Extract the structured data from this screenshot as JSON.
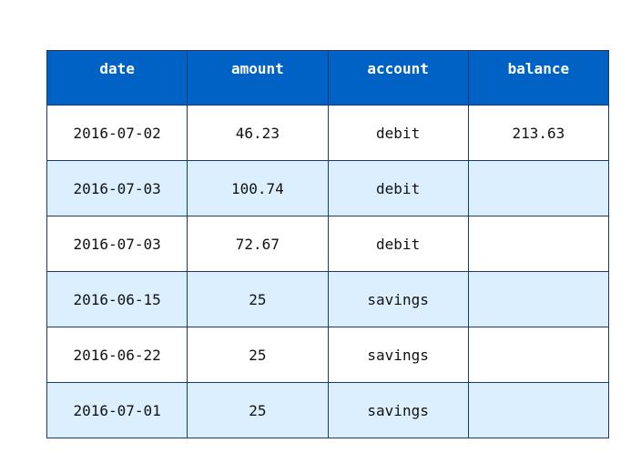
{
  "table": {
    "columns": [
      "date",
      "amount",
      "account",
      "balance"
    ],
    "rows": [
      [
        "2016-07-02",
        "46.23",
        "debit",
        "213.63"
      ],
      [
        "2016-07-03",
        "100.74",
        "debit",
        ""
      ],
      [
        "2016-07-03",
        "72.67",
        "debit",
        ""
      ],
      [
        "2016-06-15",
        "25",
        "savings",
        ""
      ],
      [
        "2016-06-22",
        "25",
        "savings",
        ""
      ],
      [
        "2016-07-01",
        "25",
        "savings",
        ""
      ]
    ]
  },
  "colors": {
    "header_bg": "#0062c4",
    "header_text": "#ffffff",
    "row_alt_bg": "#dcefff",
    "border": "#1a3a6b"
  }
}
